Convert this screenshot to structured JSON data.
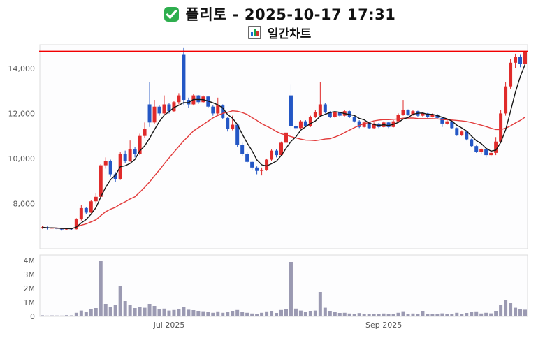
{
  "header": {
    "check_icon": "green-checkbox-icon",
    "title": "플리토 - 2025-10-17 17:31",
    "chart_icon": "bar-chart-icon",
    "subtitle": "일간차트"
  },
  "colors": {
    "accent_green": "#2eae4e",
    "icon_bar_1": "#1a6fd4",
    "icon_bar_2": "#19a24a",
    "icon_bar_3": "#d2322e"
  },
  "chart_data": [
    {
      "type": "candlestick",
      "name": "price",
      "up_color": "#e02b2b",
      "down_color": "#2457c5",
      "ylim": [
        6000,
        15050
      ],
      "y_ticks": [
        {
          "value": 8000,
          "label": "8,000"
        },
        {
          "value": 10000,
          "label": "10,000"
        },
        {
          "value": 12000,
          "label": "12,000"
        },
        {
          "value": 14000,
          "label": "14,000"
        }
      ],
      "x_ticks": [
        {
          "index": 26,
          "label": "Jul 2025"
        },
        {
          "index": 70,
          "label": "Sep 2025"
        }
      ],
      "hline": {
        "value": 14750,
        "color": "#f20000"
      },
      "overlays": [
        {
          "name": "ma-short",
          "window": 5,
          "color": "#161616"
        },
        {
          "name": "ma-long",
          "window": 20,
          "color": "#e23a3a"
        }
      ],
      "columns": [
        "open",
        "high",
        "low",
        "close"
      ],
      "ohlc": [
        [
          6950,
          7000,
          6880,
          6950
        ],
        [
          6950,
          6980,
          6850,
          6900
        ],
        [
          6900,
          6960,
          6870,
          6920
        ],
        [
          6920,
          6940,
          6830,
          6880
        ],
        [
          6880,
          6900,
          6800,
          6850
        ],
        [
          6850,
          6930,
          6840,
          6900
        ],
        [
          6900,
          6920,
          6820,
          6860
        ],
        [
          6860,
          7350,
          6850,
          7300
        ],
        [
          7300,
          7950,
          7250,
          7800
        ],
        [
          7800,
          7850,
          7550,
          7600
        ],
        [
          7600,
          8150,
          7580,
          8100
        ],
        [
          8100,
          8450,
          8000,
          8300
        ],
        [
          8300,
          9750,
          8250,
          9700
        ],
        [
          9700,
          10050,
          9550,
          9900
        ],
        [
          9900,
          9950,
          9200,
          9300
        ],
        [
          9300,
          9400,
          8950,
          9100
        ],
        [
          9100,
          10300,
          9050,
          10200
        ],
        [
          10200,
          10350,
          9800,
          9900
        ],
        [
          9900,
          10800,
          9850,
          10400
        ],
        [
          10400,
          10500,
          10050,
          10200
        ],
        [
          10200,
          11100,
          10150,
          11000
        ],
        [
          11000,
          11600,
          10900,
          11300
        ],
        [
          12400,
          13400,
          11400,
          11600
        ],
        [
          11600,
          12600,
          11550,
          12300
        ],
        [
          12300,
          12350,
          11900,
          12000
        ],
        [
          12000,
          12800,
          11950,
          12400
        ],
        [
          12400,
          12450,
          12000,
          12100
        ],
        [
          12100,
          12550,
          12050,
          12500
        ],
        [
          12500,
          12900,
          12400,
          12800
        ],
        [
          14600,
          14900,
          12400,
          12600
        ],
        [
          12600,
          12700,
          12250,
          12400
        ],
        [
          12400,
          12850,
          12350,
          12800
        ],
        [
          12800,
          12820,
          12420,
          12500
        ],
        [
          12500,
          12800,
          12450,
          12750
        ],
        [
          12750,
          12780,
          12250,
          12300
        ],
        [
          12300,
          12350,
          11900,
          12000
        ],
        [
          12000,
          12700,
          11950,
          12350
        ],
        [
          12350,
          12400,
          11750,
          11800
        ],
        [
          11800,
          11850,
          11200,
          11300
        ],
        [
          11300,
          11900,
          11250,
          11500
        ],
        [
          11500,
          11520,
          10500,
          10600
        ],
        [
          10600,
          10700,
          10100,
          10200
        ],
        [
          10200,
          10300,
          9800,
          9850
        ],
        [
          9850,
          9900,
          9500,
          9600
        ],
        [
          9600,
          9650,
          9300,
          9450
        ],
        [
          9450,
          9600,
          9250,
          9500
        ],
        [
          9500,
          10000,
          9450,
          9950
        ],
        [
          9950,
          10400,
          9900,
          10350
        ],
        [
          10350,
          10400,
          10050,
          10150
        ],
        [
          10150,
          10750,
          10100,
          10700
        ],
        [
          10700,
          11250,
          10650,
          11150
        ],
        [
          12800,
          13300,
          11200,
          11450
        ],
        [
          11450,
          11550,
          11250,
          11350
        ],
        [
          11350,
          11700,
          11300,
          11650
        ],
        [
          11650,
          11700,
          11400,
          11450
        ],
        [
          11450,
          11900,
          11400,
          11850
        ],
        [
          11850,
          12150,
          11800,
          12050
        ],
        [
          11900,
          13400,
          11850,
          12400
        ],
        [
          12400,
          12450,
          12000,
          12050
        ],
        [
          12050,
          12100,
          11800,
          11850
        ],
        [
          11850,
          12100,
          11800,
          12050
        ],
        [
          12050,
          12080,
          11850,
          11900
        ],
        [
          11900,
          12150,
          11870,
          12100
        ],
        [
          12100,
          12120,
          11800,
          11850
        ],
        [
          11850,
          11900,
          11600,
          11650
        ],
        [
          11650,
          11700,
          11350,
          11400
        ],
        [
          11400,
          11650,
          11380,
          11600
        ],
        [
          11600,
          11620,
          11300,
          11350
        ],
        [
          11350,
          11600,
          11320,
          11550
        ],
        [
          11550,
          11580,
          11350,
          11400
        ],
        [
          11400,
          11650,
          11380,
          11600
        ],
        [
          11600,
          11620,
          11350,
          11400
        ],
        [
          11400,
          11700,
          11380,
          11650
        ],
        [
          11650,
          12000,
          11600,
          11950
        ],
        [
          11950,
          12600,
          11900,
          12150
        ],
        [
          12150,
          12180,
          11900,
          11950
        ],
        [
          11950,
          12150,
          11900,
          12100
        ],
        [
          12100,
          12120,
          11850,
          11900
        ],
        [
          11900,
          12050,
          11850,
          12000
        ],
        [
          12000,
          12020,
          11800,
          11850
        ],
        [
          11850,
          12000,
          11820,
          11950
        ],
        [
          11950,
          11980,
          11750,
          11800
        ],
        [
          11800,
          11820,
          11400,
          11550
        ],
        [
          11550,
          11700,
          11500,
          11650
        ],
        [
          11650,
          11680,
          11300,
          11350
        ],
        [
          11350,
          11380,
          11000,
          11050
        ],
        [
          11050,
          11250,
          11000,
          11200
        ],
        [
          11200,
          11220,
          10800,
          10850
        ],
        [
          10850,
          10880,
          10500,
          10550
        ],
        [
          10550,
          10580,
          10250,
          10300
        ],
        [
          10300,
          10450,
          10200,
          10400
        ],
        [
          10400,
          10420,
          10050,
          10150
        ],
        [
          10150,
          10300,
          10080,
          10250
        ],
        [
          10250,
          10950,
          10150,
          10750
        ],
        [
          10750,
          12150,
          10700,
          12000
        ],
        [
          12000,
          13400,
          11900,
          13200
        ],
        [
          13200,
          14400,
          13100,
          14250
        ],
        [
          14250,
          14650,
          14000,
          14500
        ],
        [
          14500,
          14600,
          14050,
          14200
        ],
        [
          14200,
          14900,
          14150,
          14750
        ]
      ]
    },
    {
      "type": "bar",
      "name": "volume",
      "color": "#9b9ab2",
      "ylim": [
        0,
        4400000
      ],
      "y_ticks": [
        {
          "value": 0,
          "label": "0"
        },
        {
          "value": 1000000,
          "label": "1M"
        },
        {
          "value": 2000000,
          "label": "2M"
        },
        {
          "value": 3000000,
          "label": "3M"
        },
        {
          "value": 4000000,
          "label": "4M"
        }
      ],
      "values": [
        80000,
        60000,
        70000,
        65000,
        60000,
        90000,
        75000,
        260000,
        420000,
        300000,
        520000,
        600000,
        4000000,
        900000,
        700000,
        800000,
        2200000,
        1100000,
        850000,
        600000,
        700000,
        620000,
        900000,
        750000,
        500000,
        560000,
        420000,
        460000,
        520000,
        650000,
        480000,
        450000,
        360000,
        320000,
        300000,
        260000,
        310000,
        260000,
        300000,
        400000,
        460000,
        300000,
        260000,
        210000,
        200000,
        260000,
        310000,
        360000,
        250000,
        460000,
        520000,
        3900000,
        560000,
        420000,
        300000,
        360000,
        420000,
        1750000,
        620000,
        400000,
        300000,
        250000,
        260000,
        210000,
        200000,
        240000,
        200000,
        160000,
        150000,
        150000,
        210000,
        160000,
        200000,
        260000,
        320000,
        200000,
        210000,
        160000,
        400000,
        160000,
        180000,
        150000,
        220000,
        160000,
        200000,
        260000,
        200000,
        250000,
        300000,
        310000,
        210000,
        260000,
        220000,
        350000,
        820000,
        1150000,
        950000,
        620000,
        500000,
        480000
      ]
    }
  ]
}
